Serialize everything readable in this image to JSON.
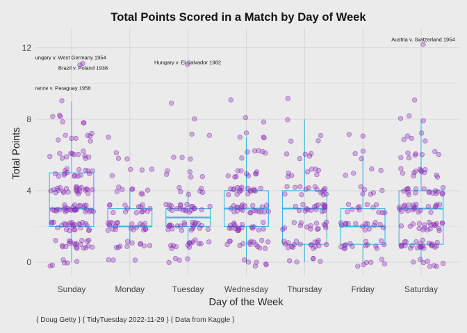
{
  "chart_data": {
    "type": "box",
    "title": "Total Points Scored in a Match by Day of Week",
    "xlabel": "Day of the Week",
    "ylabel": "Total Points",
    "caption": "{ Doug Getty } { TidyTuesday 2022-11-29 } { Data from Kaggle }",
    "categories": [
      "Sunday",
      "Monday",
      "Tuesday",
      "Wednesday",
      "Thursday",
      "Friday",
      "Saturday"
    ],
    "yticks": [
      0,
      4,
      8,
      12
    ],
    "ylim": [
      -0.78,
      13.12
    ],
    "grid": true,
    "legend": "none",
    "colors": {
      "background": "#EBEBEB",
      "grid": "#D3D3D3",
      "box": "#3DB5E6",
      "points": "#9932CC",
      "point_edge": "#7B2A9E"
    },
    "boxes": [
      {
        "day": "Sunday",
        "lower_whisker": 0,
        "q1": 2,
        "median": 3,
        "q3": 5,
        "upper_whisker": 9
      },
      {
        "day": "Monday",
        "lower_whisker": 1,
        "q1": 2,
        "median": 2,
        "q3": 3,
        "upper_whisker": 4
      },
      {
        "day": "Tuesday",
        "lower_whisker": 1,
        "q1": 2,
        "median": 2.5,
        "q3": 3,
        "upper_whisker": 4
      },
      {
        "day": "Wednesday",
        "lower_whisker": 0,
        "q1": 2,
        "median": 3,
        "q3": 4,
        "upper_whisker": 7
      },
      {
        "day": "Thursday",
        "lower_whisker": 0,
        "q1": 1,
        "median": 3,
        "q3": 4,
        "upper_whisker": 8
      },
      {
        "day": "Friday",
        "lower_whisker": 0,
        "q1": 1,
        "median": 2,
        "q3": 3,
        "upper_whisker": 6
      },
      {
        "day": "Saturday",
        "lower_whisker": 0,
        "q1": 1,
        "median": 3,
        "q3": 4,
        "upper_whisker": 8
      }
    ],
    "points": [
      {
        "day": "Sunday",
        "matches_by_total": {
          "0": 6,
          "1": 20,
          "2": 25,
          "3": 30,
          "4": 24,
          "5": 16,
          "6": 12,
          "7": 8,
          "8": 6,
          "9": 1,
          "11": 2
        }
      },
      {
        "day": "Monday",
        "matches_by_total": {
          "0": 3,
          "1": 10,
          "2": 20,
          "3": 15,
          "4": 8,
          "5": 4,
          "6": 3,
          "7": 1
        }
      },
      {
        "day": "Tuesday",
        "matches_by_total": {
          "0": 4,
          "1": 14,
          "2": 22,
          "3": 21,
          "4": 6,
          "5": 5,
          "6": 3,
          "7": 2,
          "8": 1,
          "9": 1,
          "11": 1
        }
      },
      {
        "day": "Wednesday",
        "matches_by_total": {
          "0": 6,
          "1": 15,
          "2": 20,
          "3": 22,
          "4": 18,
          "5": 10,
          "6": 6,
          "7": 4,
          "8": 2,
          "9": 1
        }
      },
      {
        "day": "Thursday",
        "matches_by_total": {
          "0": 5,
          "1": 18,
          "2": 15,
          "3": 18,
          "4": 15,
          "5": 8,
          "6": 5,
          "7": 3,
          "8": 1,
          "9": 1
        }
      },
      {
        "day": "Friday",
        "matches_by_total": {
          "0": 6,
          "1": 14,
          "2": 15,
          "3": 12,
          "4": 6,
          "5": 4,
          "6": 3,
          "7": 2
        }
      },
      {
        "day": "Saturday",
        "matches_by_total": {
          "0": 8,
          "1": 24,
          "2": 20,
          "3": 22,
          "4": 18,
          "5": 12,
          "6": 8,
          "7": 5,
          "8": 3,
          "9": 1,
          "12": 1
        }
      }
    ],
    "annotations": [
      {
        "label": "ungary v. West Germany 1954",
        "day": "Sunday",
        "total": 11
      },
      {
        "label": "Brazil v. Poland 1938",
        "day": "Sunday",
        "total": 11
      },
      {
        "label": "rance v. Paraguay 1958",
        "day": "Sunday",
        "total": 9
      },
      {
        "label": "Hungary v. El Salvador 1982",
        "day": "Tuesday",
        "total": 11
      },
      {
        "label": "Austria v. Switzerland 1954",
        "day": "Saturday",
        "total": 12
      }
    ]
  }
}
